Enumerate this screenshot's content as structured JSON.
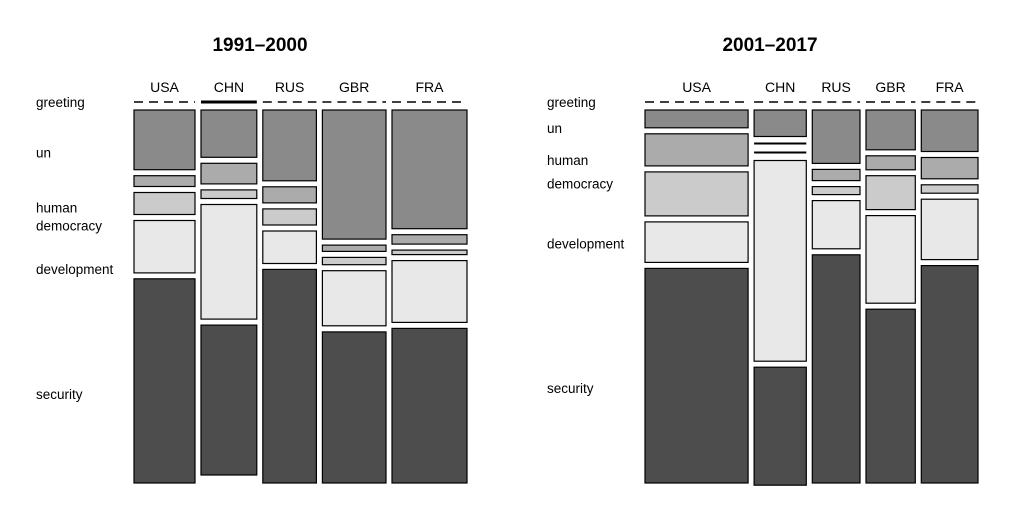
{
  "chart_data": [
    {
      "type": "mosaic",
      "title": "1991–2000",
      "columns": [
        "USA",
        "CHN",
        "RUS",
        "GBR",
        "FRA"
      ],
      "column_weights": [
        0.188,
        0.172,
        0.165,
        0.196,
        0.231
      ],
      "rows": [
        "greeting",
        "un",
        "human",
        "democracy",
        "development",
        "security"
      ],
      "row_labels": [
        {
          "key": "greeting",
          "label": "greeting"
        },
        {
          "key": "un",
          "label": "un"
        },
        {
          "key": "human",
          "label": "human"
        },
        {
          "key": "democracy",
          "label": "democracy"
        },
        {
          "key": "development",
          "label": "development"
        },
        {
          "key": "security",
          "label": "security"
        }
      ],
      "proportions": {
        "USA": {
          "greeting": 0.0,
          "un": 0.171,
          "human": 0.031,
          "democracy": 0.063,
          "development": 0.15,
          "security": 0.585
        },
        "CHN": {
          "greeting": 0.006,
          "un": 0.138,
          "human": 0.06,
          "democracy": 0.025,
          "development": 0.334,
          "security": 0.437
        },
        "RUS": {
          "greeting": 0.0,
          "un": 0.203,
          "human": 0.046,
          "democracy": 0.046,
          "development": 0.093,
          "security": 0.612
        },
        "GBR": {
          "greeting": 0.0,
          "un": 0.37,
          "human": 0.018,
          "democracy": 0.021,
          "development": 0.158,
          "security": 0.433
        },
        "FRA": {
          "greeting": 0.0,
          "un": 0.34,
          "human": 0.027,
          "democracy": 0.013,
          "development": 0.177,
          "security": 0.443
        }
      }
    },
    {
      "type": "mosaic",
      "title": "2001–2017",
      "columns": [
        "USA",
        "CHN",
        "RUS",
        "GBR",
        "FRA"
      ],
      "column_weights": [
        0.32,
        0.162,
        0.148,
        0.153,
        0.176
      ],
      "rows": [
        "greeting",
        "un",
        "human",
        "democracy",
        "development",
        "security"
      ],
      "row_labels": [
        {
          "key": "greeting",
          "label": "greeting"
        },
        {
          "key": "un",
          "label": "un"
        },
        {
          "key": "human",
          "label": "human"
        },
        {
          "key": "democracy",
          "label": "democracy"
        },
        {
          "key": "development",
          "label": "development"
        },
        {
          "key": "security",
          "label": "security"
        }
      ],
      "proportions": {
        "USA": {
          "greeting": 0.0,
          "un": 0.051,
          "human": 0.092,
          "democracy": 0.126,
          "development": 0.116,
          "security": 0.615
        },
        "CHN": {
          "greeting": 0.0,
          "un": 0.076,
          "human": 0.007,
          "democracy": 0.004,
          "development": 0.575,
          "security": 0.338
        },
        "RUS": {
          "greeting": 0.0,
          "un": 0.153,
          "human": 0.032,
          "democracy": 0.023,
          "development": 0.138,
          "security": 0.654
        },
        "GBR": {
          "greeting": 0.0,
          "un": 0.114,
          "human": 0.04,
          "democracy": 0.097,
          "development": 0.251,
          "security": 0.498
        },
        "FRA": {
          "greeting": 0.0,
          "un": 0.119,
          "human": 0.061,
          "democracy": 0.024,
          "development": 0.173,
          "security": 0.623
        }
      }
    }
  ],
  "colors": {
    "greeting": "#6e6e6e",
    "un": "#8a8a8a",
    "human": "#ababab",
    "democracy": "#cbcbcb",
    "development": "#e8e8e8",
    "security": "#4d4d4d",
    "stroke": "#000000"
  }
}
